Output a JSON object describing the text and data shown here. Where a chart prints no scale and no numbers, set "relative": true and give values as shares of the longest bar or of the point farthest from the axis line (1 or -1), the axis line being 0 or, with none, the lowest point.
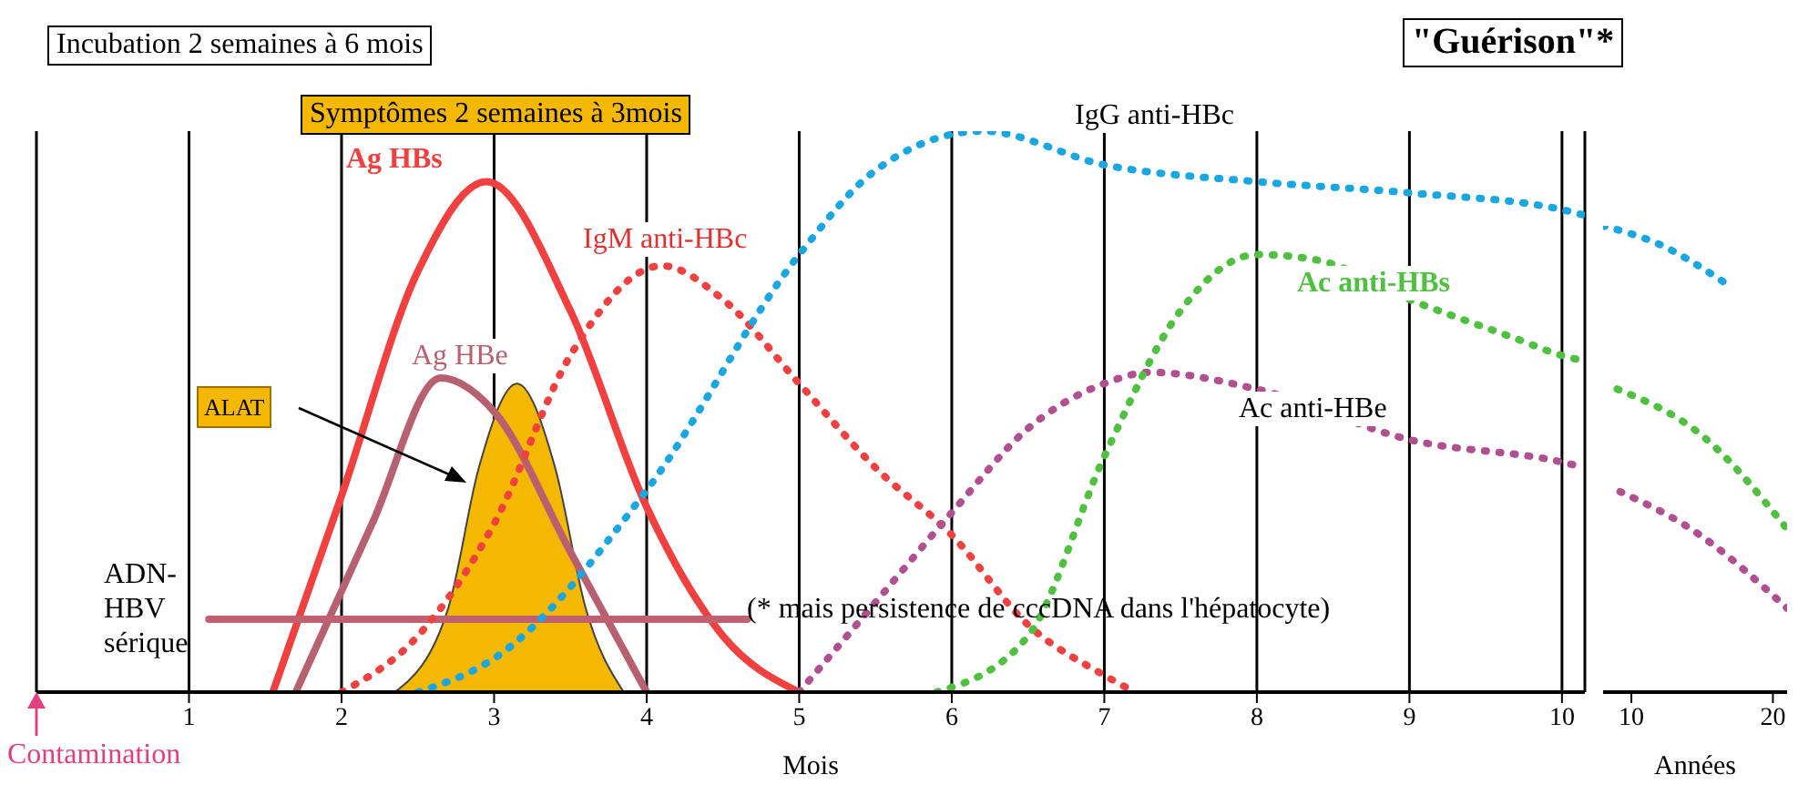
{
  "chart_data": [
    {
      "type": "line",
      "relative": true,
      "xlabel": "Mois",
      "xlim": [
        0,
        10.15
      ],
      "xticks": [
        1,
        2,
        3,
        4,
        5,
        6,
        7,
        8,
        9,
        10
      ],
      "grid": "x",
      "annotations": [
        "Incubation 2 semaines à 6 mois",
        "Symptômes 2 semaines à 3mois",
        "\"Guérison\"*",
        "(* mais persistence de cccDNA dans l'hépatocyte)",
        "Contamination"
      ],
      "series": [
        {
          "name": "Ag HBs",
          "color": "#f04040",
          "line_style": "solid",
          "x": [
            1.55,
            2,
            2.5,
            2.95,
            3.5,
            4,
            4.5,
            5
          ],
          "values": [
            0,
            0.35,
            0.75,
            0.91,
            0.68,
            0.33,
            0.1,
            0
          ]
        },
        {
          "name": "Ag HBe",
          "color": "#b86070",
          "line_style": "solid",
          "x": [
            1.7,
            2.2,
            2.65,
            3,
            3.5,
            4
          ],
          "values": [
            0,
            0.3,
            0.56,
            0.5,
            0.25,
            0
          ]
        },
        {
          "name": "ALAT",
          "type": "area",
          "color": "#f5b800",
          "x": [
            2.35,
            2.7,
            2.9,
            3.15,
            3.4,
            3.6,
            3.85
          ],
          "values": [
            0,
            0.15,
            0.4,
            0.55,
            0.4,
            0.15,
            0
          ]
        },
        {
          "name": "ADN-HBV sérique",
          "color": "#c06070",
          "line_style": "solid",
          "x": [
            1.13,
            4.66
          ],
          "values": [
            0.13,
            0.13
          ]
        },
        {
          "name": "IgM anti-HBc",
          "color": "#f04040",
          "line_style": "dotted",
          "x": [
            2,
            2.5,
            3,
            3.5,
            4.1,
            4.5,
            5,
            5.5,
            6,
            6.5,
            7,
            7.2
          ],
          "values": [
            0,
            0.1,
            0.3,
            0.6,
            0.76,
            0.7,
            0.55,
            0.4,
            0.28,
            0.12,
            0.03,
            0
          ]
        },
        {
          "name": "IgG anti-HBc",
          "color": "#1aa6e0",
          "line_style": "dotted",
          "x": [
            2.5,
            3,
            4,
            5,
            5.5,
            6.2,
            7,
            8,
            9,
            10,
            10.15
          ],
          "values": [
            0,
            0.06,
            0.36,
            0.78,
            0.93,
            1,
            0.94,
            0.91,
            0.89,
            0.86,
            0.85
          ]
        },
        {
          "name": "Ac anti-HBe",
          "color": "#b05090",
          "line_style": "dotted",
          "x": [
            5,
            5.5,
            6,
            6.5,
            7,
            7.3,
            8,
            9,
            10,
            10.15
          ],
          "values": [
            0,
            0.16,
            0.32,
            0.47,
            0.55,
            0.57,
            0.54,
            0.45,
            0.41,
            0.4
          ]
        },
        {
          "name": "Ac anti-HBs",
          "color": "#50c040",
          "line_style": "dotted",
          "x": [
            5.9,
            6.5,
            7,
            7.5,
            8,
            8.4,
            9,
            9.7,
            10,
            10.15
          ],
          "values": [
            0,
            0.1,
            0.42,
            0.68,
            0.78,
            0.77,
            0.7,
            0.63,
            0.6,
            0.59
          ]
        }
      ]
    },
    {
      "type": "line",
      "relative": true,
      "xlabel": "Années",
      "xlim": [
        8,
        21
      ],
      "xticks": [
        10,
        20
      ],
      "series": [
        {
          "color": "#1aa6e0",
          "line_style": "dotted",
          "x": [
            8,
            12,
            16.5
          ],
          "values": [
            1,
            0.96,
            0.88
          ]
        },
        {
          "color": "#50c040",
          "line_style": "dotted",
          "x": [
            9,
            15,
            21
          ],
          "values": [
            0.65,
            0.55,
            0.35
          ]
        },
        {
          "color": "#b05090",
          "line_style": "dotted",
          "x": [
            9.2,
            14.2,
            21
          ],
          "values": [
            0.43,
            0.35,
            0.18
          ]
        }
      ]
    }
  ]
}
